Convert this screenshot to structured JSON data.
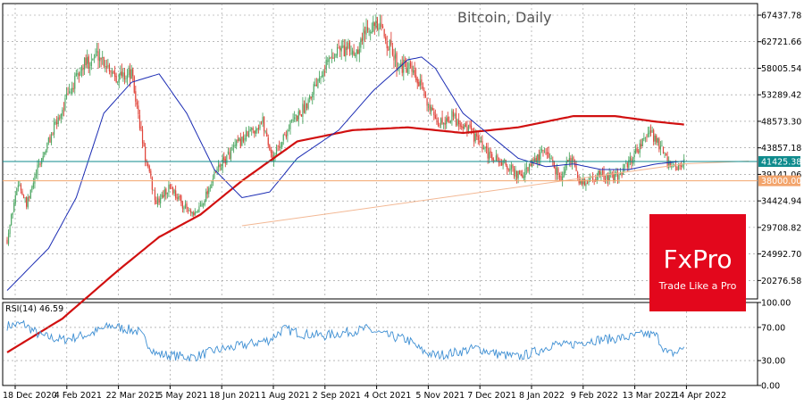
{
  "chart_data": [
    {
      "type": "candlestick",
      "title": "Bitcoin, Daily",
      "ylim": [
        17000,
        69500
      ],
      "y_ticks": [
        "67437.78",
        "62721.66",
        "58005.54",
        "53289.42",
        "48573.30",
        "43857.18",
        "39141.06",
        "34424.94",
        "29708.82",
        "24992.70",
        "20276.58"
      ],
      "x_ticks": [
        "18 Dec 2020",
        "4 Feb 2021",
        "22 Mar 2021",
        "5 May 2021",
        "18 Jun 2021",
        "1 Aug 2021",
        "2 Sep 2021",
        "4 Oct 2021",
        "5 Nov 2021",
        "7 Dec 2021",
        "8 Jan 2022",
        "9 Feb 2022",
        "13 Mar 2022",
        "14 Apr 2022"
      ],
      "price_labels": [
        {
          "text": "41425.38",
          "value": 41425.38,
          "color": "#0f8b8d"
        },
        {
          "text": "38000.00",
          "value": 38000,
          "color": "#f3a46b"
        }
      ],
      "price_anchors": [
        [
          0,
          27500
        ],
        [
          8,
          38000
        ],
        [
          14,
          33500
        ],
        [
          22,
          40000
        ],
        [
          30,
          45000
        ],
        [
          42,
          52000
        ],
        [
          55,
          58500
        ],
        [
          66,
          60500
        ],
        [
          80,
          56500
        ],
        [
          90,
          57000
        ],
        [
          100,
          42000
        ],
        [
          108,
          34000
        ],
        [
          118,
          37000
        ],
        [
          128,
          33500
        ],
        [
          135,
          31500
        ],
        [
          142,
          34500
        ],
        [
          152,
          40000
        ],
        [
          165,
          44000
        ],
        [
          175,
          46500
        ],
        [
          185,
          48500
        ],
        [
          192,
          42000
        ],
        [
          205,
          48000
        ],
        [
          215,
          51000
        ],
        [
          228,
          58000
        ],
        [
          240,
          61500
        ],
        [
          252,
          61000
        ],
        [
          262,
          66000
        ],
        [
          272,
          64500
        ],
        [
          282,
          59000
        ],
        [
          292,
          57500
        ],
        [
          298,
          55000
        ],
        [
          305,
          52000
        ],
        [
          310,
          48000
        ],
        [
          322,
          49500
        ],
        [
          335,
          47000
        ],
        [
          348,
          42500
        ],
        [
          360,
          41000
        ],
        [
          372,
          38500
        ],
        [
          380,
          41000
        ],
        [
          390,
          43500
        ],
        [
          397,
          40000
        ],
        [
          402,
          38500
        ],
        [
          407,
          42500
        ],
        [
          415,
          37500
        ],
        [
          428,
          39000
        ],
        [
          440,
          38500
        ],
        [
          450,
          41000
        ],
        [
          458,
          44500
        ],
        [
          466,
          46500
        ],
        [
          472,
          44500
        ],
        [
          478,
          41000
        ],
        [
          484,
          40000
        ],
        [
          490,
          41425
        ]
      ],
      "ma_slow_points": [
        [
          0,
          7500
        ],
        [
          40,
          13500
        ],
        [
          80,
          22000
        ],
        [
          110,
          28000
        ],
        [
          140,
          32000
        ],
        [
          170,
          38000
        ],
        [
          210,
          45000
        ],
        [
          250,
          47000
        ],
        [
          290,
          47500
        ],
        [
          330,
          46500
        ],
        [
          370,
          47500
        ],
        [
          410,
          49500
        ],
        [
          440,
          49500
        ],
        [
          470,
          48500
        ],
        [
          490,
          48000
        ]
      ],
      "ma_fast_points": [
        [
          0,
          18500
        ],
        [
          30,
          26000
        ],
        [
          50,
          35000
        ],
        [
          70,
          50000
        ],
        [
          90,
          55500
        ],
        [
          110,
          57000
        ],
        [
          130,
          50000
        ],
        [
          150,
          40000
        ],
        [
          170,
          35000
        ],
        [
          190,
          36000
        ],
        [
          210,
          42000
        ],
        [
          240,
          47000
        ],
        [
          265,
          54000
        ],
        [
          290,
          59500
        ],
        [
          300,
          60000
        ],
        [
          310,
          58000
        ],
        [
          330,
          50000
        ],
        [
          350,
          46000
        ],
        [
          370,
          42000
        ],
        [
          390,
          40500
        ],
        [
          410,
          41000
        ],
        [
          430,
          40000
        ],
        [
          450,
          40000
        ],
        [
          470,
          41000
        ],
        [
          490,
          41500
        ]
      ],
      "trendline_points": [
        [
          170,
          30000
        ],
        [
          490,
          41000
        ]
      ],
      "trendline_extended": [
        [
          490,
          41000
        ],
        [
          537,
          41500
        ]
      ],
      "n_bars": 490,
      "logo": {
        "brand": "FxPro",
        "tagline": "Trade Like a Pro",
        "color": "#e3071c"
      },
      "colors": {
        "bull": "#4fa865",
        "bear": "#e0443a",
        "ma_slow": "#d11010",
        "ma_fast": "#1c2db4",
        "grid": "#8f8f8f",
        "hline_teal": "#0f8b8d",
        "hline_orange": "#f3a46b",
        "trend": "#f3b894"
      }
    },
    {
      "type": "line",
      "label": "RSI(14) 46.59",
      "ylim": [
        0,
        100
      ],
      "y_ticks": [
        "100.00",
        "70.00",
        "30.00",
        "0.00"
      ],
      "levels": [
        30,
        70
      ],
      "anchors": [
        [
          0,
          72
        ],
        [
          12,
          74
        ],
        [
          24,
          60
        ],
        [
          40,
          55
        ],
        [
          60,
          62
        ],
        [
          75,
          72
        ],
        [
          95,
          65
        ],
        [
          108,
          38
        ],
        [
          120,
          36
        ],
        [
          135,
          34
        ],
        [
          150,
          42
        ],
        [
          170,
          48
        ],
        [
          190,
          55
        ],
        [
          200,
          68
        ],
        [
          215,
          62
        ],
        [
          230,
          60
        ],
        [
          245,
          64
        ],
        [
          260,
          68
        ],
        [
          275,
          60
        ],
        [
          290,
          55
        ],
        [
          300,
          42
        ],
        [
          310,
          36
        ],
        [
          325,
          40
        ],
        [
          340,
          45
        ],
        [
          355,
          38
        ],
        [
          370,
          34
        ],
        [
          385,
          42
        ],
        [
          395,
          50
        ],
        [
          405,
          48
        ],
        [
          420,
          54
        ],
        [
          435,
          56
        ],
        [
          450,
          58
        ],
        [
          462,
          62
        ],
        [
          470,
          60
        ],
        [
          478,
          38
        ],
        [
          485,
          40
        ],
        [
          490,
          46.59
        ]
      ],
      "color": "#3e8fd3"
    }
  ]
}
